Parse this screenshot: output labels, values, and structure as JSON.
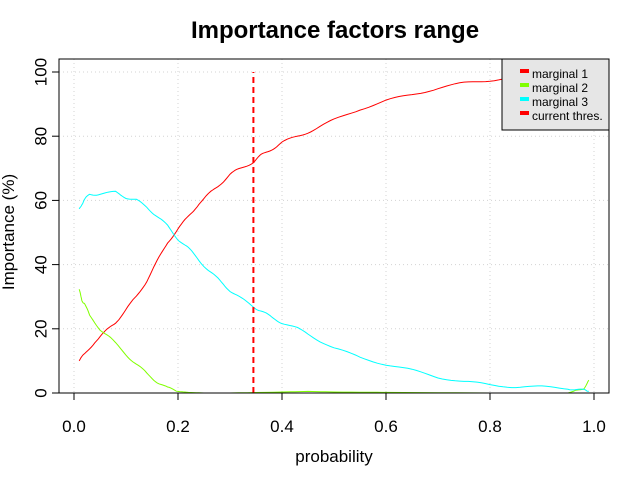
{
  "chart_data": {
    "type": "line",
    "title": "Importance factors range",
    "xlabel": "probability",
    "ylabel": "Importance (%)",
    "xlim": [
      0,
      1
    ],
    "ylim": [
      0,
      100
    ],
    "x_ticks": [
      "0.0",
      "0.2",
      "0.4",
      "0.6",
      "0.8",
      "1.0"
    ],
    "y_ticks": [
      "0",
      "20",
      "40",
      "60",
      "80",
      "100"
    ],
    "grid": true,
    "legend_position": "top-right",
    "series": [
      {
        "name": "marginal 1",
        "color": "#ff0000",
        "x": [
          0.01,
          0.02,
          0.04,
          0.06,
          0.08,
          0.1,
          0.12,
          0.14,
          0.16,
          0.18,
          0.2,
          0.22,
          0.24,
          0.26,
          0.28,
          0.3,
          0.32,
          0.345,
          0.36,
          0.38,
          0.4,
          0.43,
          0.46,
          0.5,
          0.55,
          0.6,
          0.65,
          0.7,
          0.75,
          0.8,
          0.85,
          0.9,
          0.95,
          0.99
        ],
        "y": [
          10,
          12,
          16,
          19,
          22,
          26,
          30,
          35,
          41,
          47,
          51,
          55,
          59,
          62,
          65,
          68,
          70,
          72,
          74,
          76,
          78,
          80,
          82,
          85,
          88.5,
          91,
          93,
          95,
          96.5,
          97.5,
          98.5,
          99.2,
          99.7,
          100
        ]
      },
      {
        "name": "marginal 2",
        "color": "#80ff00",
        "x": [
          0.01,
          0.015,
          0.02,
          0.03,
          0.05,
          0.07,
          0.1,
          0.12,
          0.14,
          0.16,
          0.18,
          0.2,
          0.22,
          0.25,
          0.3,
          0.4,
          0.45,
          0.5,
          0.6,
          0.8,
          0.95,
          0.98,
          0.99
        ],
        "y": [
          32,
          29,
          28,
          24,
          20,
          17,
          12,
          9,
          6,
          3.5,
          1.5,
          0.5,
          0.2,
          0,
          0,
          0.3,
          0.5,
          0.3,
          0.2,
          0,
          0,
          1.5,
          4
        ]
      },
      {
        "name": "marginal 3",
        "color": "#00ffff",
        "x": [
          0.01,
          0.015,
          0.02,
          0.03,
          0.05,
          0.08,
          0.1,
          0.12,
          0.14,
          0.16,
          0.18,
          0.2,
          0.22,
          0.24,
          0.26,
          0.28,
          0.3,
          0.32,
          0.345,
          0.36,
          0.38,
          0.4,
          0.43,
          0.46,
          0.5,
          0.55,
          0.6,
          0.65,
          0.7,
          0.75,
          0.8,
          0.85,
          0.9,
          0.95,
          0.97,
          0.99
        ],
        "y": [
          57,
          59,
          60,
          62,
          62,
          62.5,
          61,
          60,
          58,
          55,
          52,
          48,
          45,
          41.5,
          38,
          35,
          32,
          29.5,
          27,
          25.5,
          23.5,
          22,
          20,
          17.5,
          14,
          11,
          9,
          7,
          5,
          3.5,
          2.5,
          2,
          1.8,
          1.5,
          1,
          0.5
        ]
      },
      {
        "name": "current thres.",
        "color": "#ff0000",
        "style": "dashed",
        "x": [
          0.345,
          0.345
        ],
        "y": [
          0,
          100
        ]
      }
    ]
  }
}
